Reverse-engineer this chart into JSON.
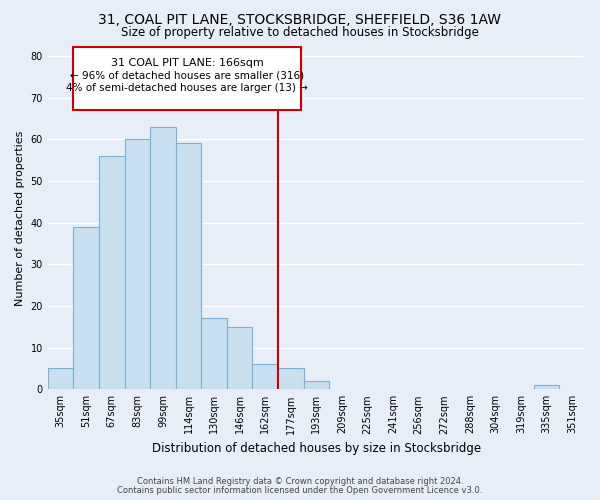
{
  "title": "31, COAL PIT LANE, STOCKSBRIDGE, SHEFFIELD, S36 1AW",
  "subtitle": "Size of property relative to detached houses in Stocksbridge",
  "xlabel": "Distribution of detached houses by size in Stocksbridge",
  "ylabel": "Number of detached properties",
  "bar_labels": [
    "35sqm",
    "51sqm",
    "67sqm",
    "83sqm",
    "99sqm",
    "114sqm",
    "130sqm",
    "146sqm",
    "162sqm",
    "177sqm",
    "193sqm",
    "209sqm",
    "225sqm",
    "241sqm",
    "256sqm",
    "272sqm",
    "288sqm",
    "304sqm",
    "319sqm",
    "335sqm",
    "351sqm"
  ],
  "bar_values": [
    5,
    39,
    56,
    60,
    63,
    59,
    17,
    15,
    6,
    5,
    2,
    0,
    0,
    0,
    0,
    0,
    0,
    0,
    0,
    1,
    0
  ],
  "bar_color": "#c8dff0",
  "bar_edge_color": "#7ab0d4",
  "ylim": [
    0,
    82
  ],
  "yticks": [
    0,
    10,
    20,
    30,
    40,
    50,
    60,
    70,
    80
  ],
  "property_line_index": 8.5,
  "property_line_color": "#cc0000",
  "annotation_title": "31 COAL PIT LANE: 166sqm",
  "annotation_line1": "← 96% of detached houses are smaller (316)",
  "annotation_line2": "4% of semi-detached houses are larger (13) →",
  "annotation_box_color": "#ffffff",
  "annotation_box_edge": "#cc0000",
  "footer1": "Contains HM Land Registry data © Crown copyright and database right 2024.",
  "footer2": "Contains public sector information licensed under the Open Government Licence v3.0.",
  "background_color": "#e8eef8",
  "grid_color": "#ffffff",
  "title_fontsize": 10,
  "subtitle_fontsize": 8.5,
  "tick_fontsize": 7,
  "ylabel_fontsize": 8,
  "xlabel_fontsize": 8.5,
  "footer_fontsize": 6,
  "ann_title_fontsize": 8,
  "ann_line_fontsize": 7.5
}
